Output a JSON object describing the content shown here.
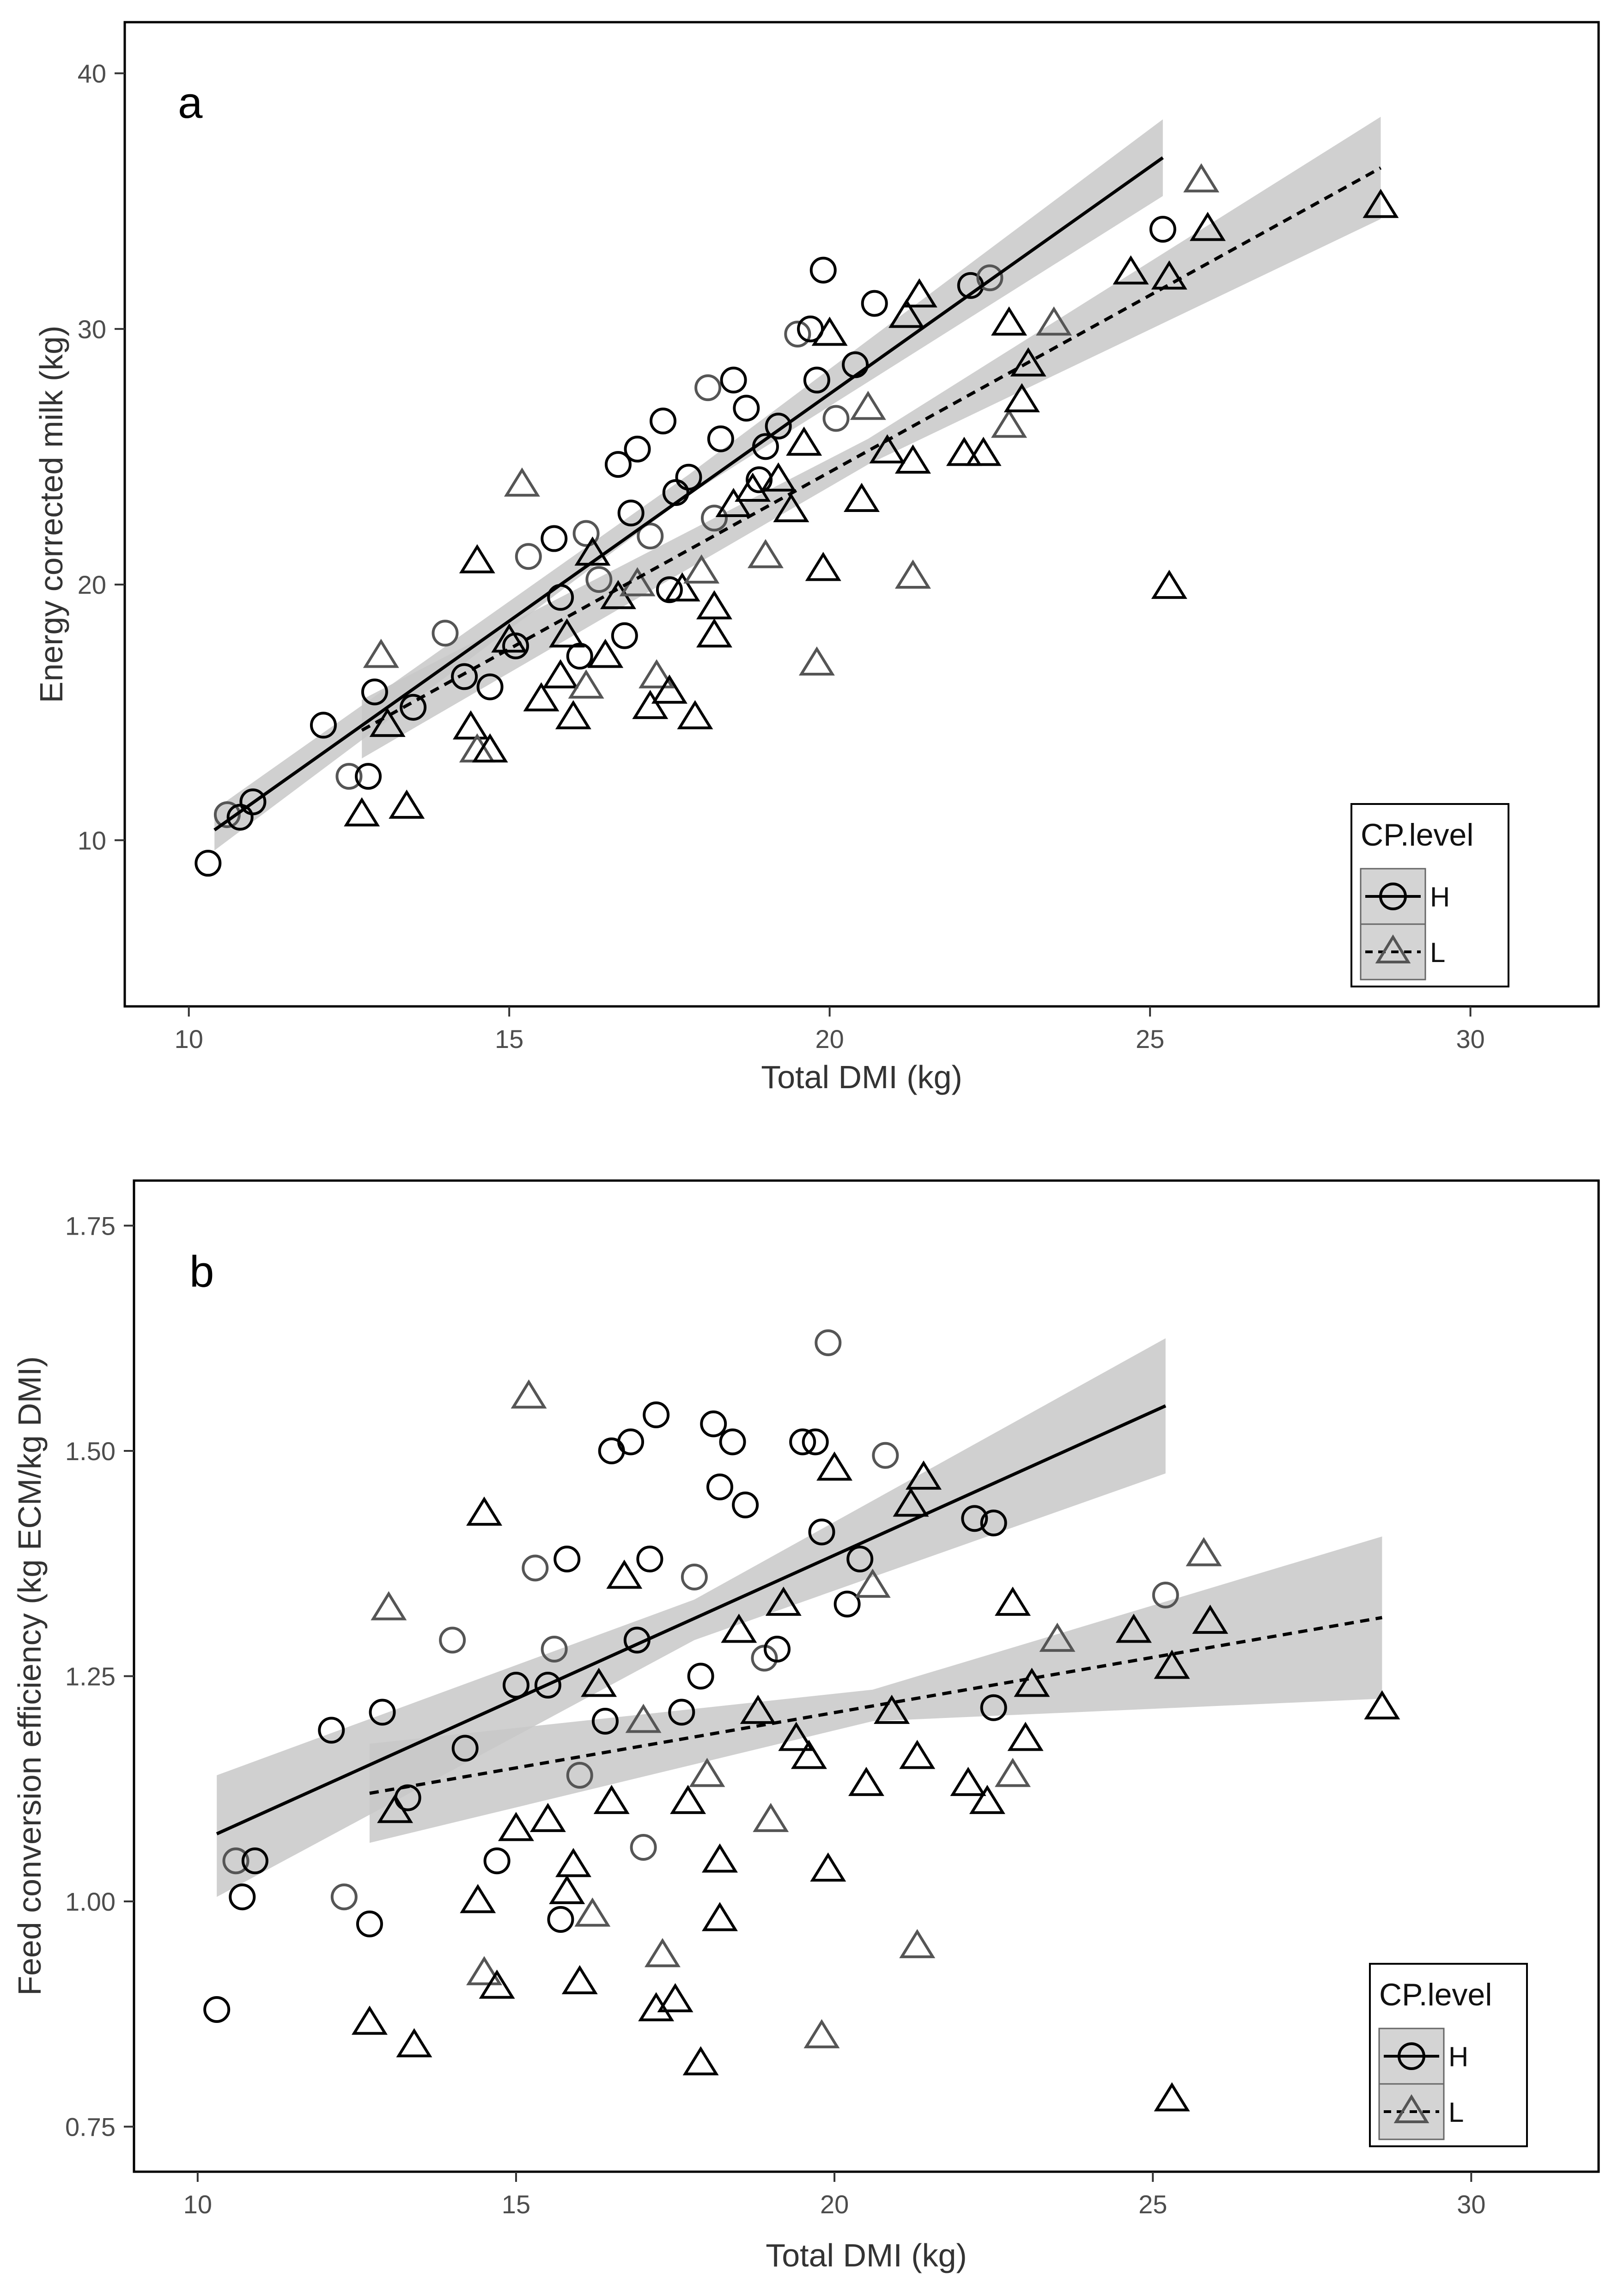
{
  "colors": {
    "ribbon": "#c8c8c8",
    "marker_stroke": "#000000",
    "marker_stroke_light": "#555555",
    "line": "#000000",
    "panel_border": "#000000",
    "legend_key_bg": "#d4d4d4"
  },
  "icons": {
    "series_h": "circle-icon",
    "series_l": "triangle-icon"
  },
  "chart_data": [
    {
      "type": "scatter",
      "panel_label": "a",
      "xlabel": "Total DMI (kg)",
      "ylabel": "Energy corrected milk (kg)",
      "xlim": [
        9,
        32
      ],
      "ylim": [
        3.5,
        42
      ],
      "xticks": [
        10,
        15,
        20,
        25,
        30
      ],
      "xtick_labels": [
        "10",
        "15",
        "20",
        "25",
        "30"
      ],
      "yticks": [
        10,
        20,
        30,
        40
      ],
      "ytick_labels": [
        "10",
        "20",
        "30",
        "40"
      ],
      "legend": {
        "title": "CP.level",
        "position": "bottom-right",
        "entries": [
          "H",
          "L"
        ]
      },
      "series": [
        {
          "name": "H",
          "marker": "circle",
          "line_style": "solid",
          "fit": {
            "x_start": 10.4,
            "x_end": 25.2,
            "y_start": 10.4,
            "y_end": 36.7
          },
          "ribbon": {
            "x": [
              10.4,
              17.8,
              25.2
            ],
            "lower": [
              9.6,
              23.5,
              35.2
            ],
            "upper": [
              11.2,
              24.3,
              38.2
            ]
          },
          "points": [
            [
              10.3,
              9.1
            ],
            [
              10.6,
              11.0
            ],
            [
              10.8,
              10.9
            ],
            [
              11.0,
              11.5
            ],
            [
              12.1,
              14.5
            ],
            [
              12.5,
              12.5
            ],
            [
              12.8,
              12.5
            ],
            [
              12.9,
              15.8
            ],
            [
              13.5,
              15.2
            ],
            [
              14.0,
              18.1
            ],
            [
              14.3,
              16.4
            ],
            [
              14.7,
              16.0
            ],
            [
              15.1,
              17.6
            ],
            [
              15.3,
              21.1
            ],
            [
              15.7,
              21.8
            ],
            [
              15.8,
              19.5
            ],
            [
              16.1,
              17.2
            ],
            [
              16.4,
              20.2
            ],
            [
              16.7,
              24.7
            ],
            [
              16.9,
              22.8
            ],
            [
              17.0,
              25.3
            ],
            [
              17.2,
              21.9
            ],
            [
              17.4,
              26.4
            ],
            [
              17.6,
              23.6
            ],
            [
              17.8,
              24.2
            ],
            [
              18.1,
              27.7
            ],
            [
              18.3,
              25.7
            ],
            [
              18.5,
              28.0
            ],
            [
              18.7,
              26.9
            ],
            [
              18.2,
              22.6
            ],
            [
              16.8,
              18.0
            ],
            [
              19.0,
              25.4
            ],
            [
              19.2,
              26.2
            ],
            [
              19.5,
              29.8
            ],
            [
              19.7,
              30.0
            ],
            [
              19.9,
              32.3
            ],
            [
              19.8,
              28.0
            ],
            [
              20.1,
              26.5
            ],
            [
              20.4,
              28.6
            ],
            [
              20.7,
              31.0
            ],
            [
              22.2,
              31.7
            ],
            [
              22.5,
              32.0
            ],
            [
              25.2,
              33.9
            ],
            [
              17.5,
              19.8
            ],
            [
              18.9,
              24.1
            ],
            [
              16.2,
              22.0
            ]
          ]
        },
        {
          "name": "L",
          "marker": "triangle",
          "line_style": "dashed",
          "fit": {
            "x_start": 12.7,
            "x_end": 28.6,
            "y_start": 14.3,
            "y_end": 36.3
          },
          "ribbon": {
            "x": [
              12.7,
              20.6,
              28.6
            ],
            "lower": [
              13.2,
              24.7,
              34.3
            ],
            "upper": [
              15.5,
              25.7,
              38.3
            ]
          },
          "points": [
            [
              12.7,
              11.0
            ],
            [
              13.0,
              17.2
            ],
            [
              13.1,
              14.5
            ],
            [
              13.4,
              11.3
            ],
            [
              14.4,
              14.4
            ],
            [
              14.5,
              13.5
            ],
            [
              14.5,
              20.9
            ],
            [
              14.7,
              13.5
            ],
            [
              15.0,
              17.8
            ],
            [
              15.2,
              23.9
            ],
            [
              15.5,
              15.5
            ],
            [
              15.8,
              16.4
            ],
            [
              16.0,
              14.8
            ],
            [
              16.2,
              16.0
            ],
            [
              16.5,
              17.2
            ],
            [
              16.7,
              19.5
            ],
            [
              17.2,
              15.2
            ],
            [
              17.3,
              16.4
            ],
            [
              17.5,
              15.8
            ],
            [
              17.7,
              19.8
            ],
            [
              17.9,
              14.8
            ],
            [
              18.0,
              20.5
            ],
            [
              18.2,
              18.0
            ],
            [
              18.2,
              19.1
            ],
            [
              18.5,
              23.1
            ],
            [
              19.0,
              21.1
            ],
            [
              19.2,
              24.1
            ],
            [
              19.4,
              22.9
            ],
            [
              19.6,
              25.5
            ],
            [
              19.8,
              16.9
            ],
            [
              19.9,
              20.6
            ],
            [
              20.0,
              29.8
            ],
            [
              20.5,
              23.3
            ],
            [
              20.6,
              26.9
            ],
            [
              20.9,
              25.2
            ],
            [
              21.2,
              30.5
            ],
            [
              21.3,
              24.8
            ],
            [
              21.3,
              20.3
            ],
            [
              21.4,
              31.3
            ],
            [
              22.1,
              25.1
            ],
            [
              22.4,
              25.1
            ],
            [
              22.8,
              26.2
            ],
            [
              22.8,
              30.2
            ],
            [
              23.0,
              27.2
            ],
            [
              23.1,
              28.6
            ],
            [
              23.5,
              30.2
            ],
            [
              24.7,
              32.2
            ],
            [
              25.3,
              32.0
            ],
            [
              25.3,
              19.9
            ],
            [
              25.8,
              35.8
            ],
            [
              25.9,
              33.9
            ],
            [
              28.6,
              34.8
            ],
            [
              16.3,
              21.2
            ],
            [
              17.0,
              20.0
            ],
            [
              18.8,
              23.7
            ],
            [
              15.9,
              18.0
            ]
          ]
        }
      ]
    },
    {
      "type": "scatter",
      "panel_label": "b",
      "xlabel": "Total DMI (kg)",
      "ylabel": "Feed conversion efficiency (kg ECM/kg DMI)",
      "xlim": [
        9,
        32
      ],
      "ylim": [
        0.7,
        1.8
      ],
      "xticks": [
        10,
        15,
        20,
        25,
        30
      ],
      "xtick_labels": [
        "10",
        "15",
        "20",
        "25",
        "30"
      ],
      "yticks": [
        0.75,
        1.0,
        1.25,
        1.5,
        1.75
      ],
      "ytick_labels": [
        "0.75",
        "1.00",
        "1.25",
        "1.50",
        "1.75"
      ],
      "legend": {
        "title": "CP.level",
        "position": "bottom-right",
        "entries": [
          "H",
          "L"
        ]
      },
      "series": [
        {
          "name": "H",
          "marker": "circle",
          "line_style": "solid",
          "fit": {
            "x_start": 10.3,
            "x_end": 25.2,
            "y_start": 1.075,
            "y_end": 1.55
          },
          "ribbon": {
            "x": [
              10.3,
              17.8,
              25.2
            ],
            "lower": [
              1.005,
              1.29,
              1.475
            ],
            "upper": [
              1.14,
              1.335,
              1.625
            ]
          },
          "points": [
            [
              10.3,
              0.88
            ],
            [
              10.6,
              1.045
            ],
            [
              10.7,
              1.005
            ],
            [
              10.9,
              1.045
            ],
            [
              12.1,
              1.19
            ],
            [
              12.3,
              1.005
            ],
            [
              12.7,
              0.975
            ],
            [
              12.9,
              1.21
            ],
            [
              13.3,
              1.115
            ],
            [
              14.0,
              1.29
            ],
            [
              14.2,
              1.17
            ],
            [
              14.7,
              1.045
            ],
            [
              15.0,
              1.24
            ],
            [
              15.3,
              1.37
            ],
            [
              15.5,
              1.24
            ],
            [
              15.7,
              0.98
            ],
            [
              15.8,
              1.38
            ],
            [
              16.0,
              1.14
            ],
            [
              16.4,
              1.2
            ],
            [
              16.5,
              1.5
            ],
            [
              16.8,
              1.51
            ],
            [
              17.0,
              1.06
            ],
            [
              17.1,
              1.38
            ],
            [
              17.2,
              1.54
            ],
            [
              17.6,
              1.21
            ],
            [
              17.8,
              1.36
            ],
            [
              18.1,
              1.53
            ],
            [
              18.4,
              1.51
            ],
            [
              18.6,
              1.44
            ],
            [
              18.9,
              1.27
            ],
            [
              19.1,
              1.28
            ],
            [
              19.5,
              1.51
            ],
            [
              19.7,
              1.51
            ],
            [
              19.9,
              1.62
            ],
            [
              19.8,
              1.41
            ],
            [
              20.2,
              1.33
            ],
            [
              20.4,
              1.38
            ],
            [
              20.8,
              1.495
            ],
            [
              22.2,
              1.425
            ],
            [
              22.5,
              1.42
            ],
            [
              22.5,
              1.215
            ],
            [
              25.2,
              1.34
            ],
            [
              18.2,
              1.46
            ],
            [
              16.9,
              1.29
            ],
            [
              17.9,
              1.25
            ],
            [
              15.6,
              1.28
            ]
          ]
        },
        {
          "name": "L",
          "marker": "triangle",
          "line_style": "dashed",
          "fit": {
            "x_start": 12.7,
            "x_end": 28.6,
            "y_start": 1.12,
            "y_end": 1.315
          },
          "ribbon": {
            "x": [
              12.7,
              20.6,
              28.6
            ],
            "lower": [
              1.065,
              1.2,
              1.225
            ],
            "upper": [
              1.175,
              1.235,
              1.405
            ]
          },
          "points": [
            [
              12.7,
              0.865
            ],
            [
              13.0,
              1.325
            ],
            [
              13.1,
              1.1
            ],
            [
              13.4,
              0.84
            ],
            [
              14.4,
              1.0
            ],
            [
              14.5,
              0.92
            ],
            [
              14.5,
              1.43
            ],
            [
              14.7,
              0.905
            ],
            [
              15.0,
              1.08
            ],
            [
              15.2,
              1.56
            ],
            [
              15.5,
              1.09
            ],
            [
              15.8,
              1.01
            ],
            [
              16.0,
              0.91
            ],
            [
              16.2,
              0.985
            ],
            [
              16.5,
              1.11
            ],
            [
              16.7,
              1.36
            ],
            [
              17.2,
              0.88
            ],
            [
              17.3,
              0.94
            ],
            [
              17.5,
              0.89
            ],
            [
              17.7,
              1.11
            ],
            [
              17.9,
              0.82
            ],
            [
              18.0,
              1.14
            ],
            [
              18.2,
              0.98
            ],
            [
              18.2,
              1.045
            ],
            [
              18.5,
              1.3
            ],
            [
              19.0,
              1.09
            ],
            [
              19.2,
              1.33
            ],
            [
              19.4,
              1.18
            ],
            [
              19.6,
              1.16
            ],
            [
              19.8,
              0.85
            ],
            [
              19.9,
              1.035
            ],
            [
              20.0,
              1.48
            ],
            [
              20.5,
              1.13
            ],
            [
              20.6,
              1.35
            ],
            [
              20.9,
              1.21
            ],
            [
              21.2,
              1.44
            ],
            [
              21.3,
              1.16
            ],
            [
              21.3,
              0.95
            ],
            [
              21.4,
              1.47
            ],
            [
              22.1,
              1.13
            ],
            [
              22.4,
              1.11
            ],
            [
              22.8,
              1.14
            ],
            [
              22.8,
              1.33
            ],
            [
              23.0,
              1.18
            ],
            [
              23.1,
              1.24
            ],
            [
              23.5,
              1.29
            ],
            [
              24.7,
              1.3
            ],
            [
              25.3,
              1.26
            ],
            [
              25.3,
              0.78
            ],
            [
              25.8,
              1.385
            ],
            [
              25.9,
              1.31
            ],
            [
              28.6,
              1.215
            ],
            [
              16.3,
              1.24
            ],
            [
              17.0,
              1.2
            ],
            [
              18.8,
              1.21
            ],
            [
              15.9,
              1.04
            ]
          ]
        }
      ]
    }
  ]
}
